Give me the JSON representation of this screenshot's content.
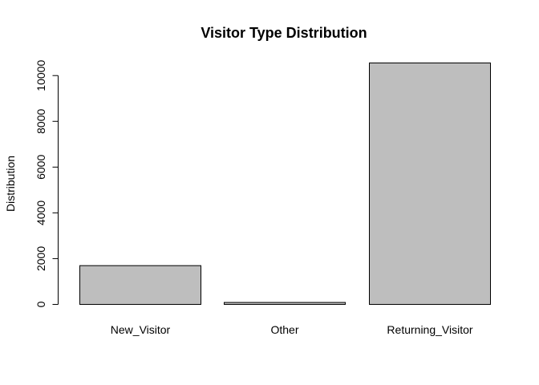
{
  "chart_data": {
    "type": "bar",
    "title": "Visitor Type Distribution",
    "xlabel": "",
    "ylabel": "Distribution",
    "categories": [
      "New_Visitor",
      "Other",
      "Returning_Visitor"
    ],
    "values": [
      1694,
      85,
      10551
    ],
    "ylim": [
      0,
      10551
    ],
    "yticks": [
      0,
      2000,
      4000,
      6000,
      8000,
      10000
    ],
    "ytick_labels": [
      "0",
      "2000",
      "4000",
      "6000",
      "8000",
      "10000"
    ],
    "grid": false,
    "legend": "none",
    "colors": {
      "bar_fill": "#bebebe",
      "bar_stroke": "#000000",
      "axis": "#000000",
      "text": "#000000",
      "background": "#ffffff"
    }
  }
}
